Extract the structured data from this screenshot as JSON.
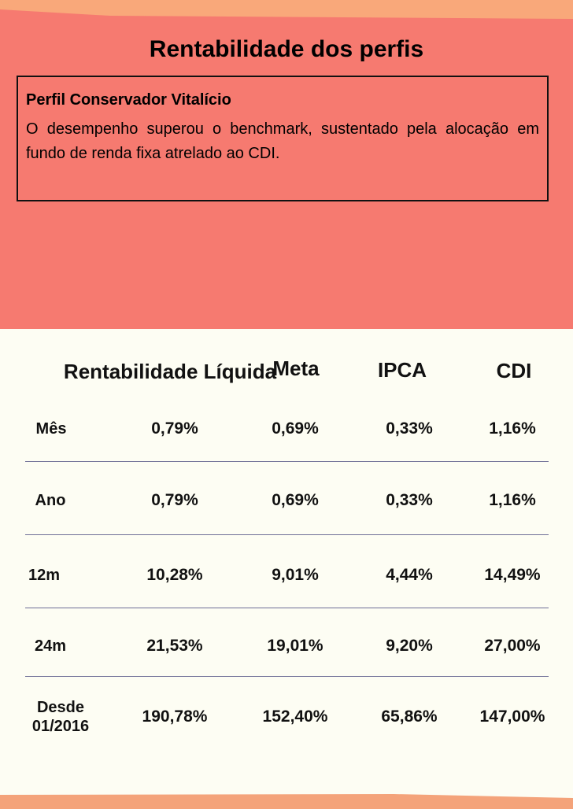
{
  "title": "Rentabilidade dos perfis",
  "profile": {
    "name": "Perfil Conservador Vitalício",
    "description": "O desempenho superou o benchmark, sustentado pela alocação em fundo de renda fixa atrelado ao CDI."
  },
  "table": {
    "headers": [
      "Rentabilidade Líquida",
      "Meta",
      "IPCA",
      "CDI"
    ],
    "rows": [
      {
        "label": "Mês",
        "values": [
          "0,79%",
          "0,69%",
          "0,33%",
          "1,16%"
        ]
      },
      {
        "label": "Ano",
        "values": [
          "0,79%",
          "0,69%",
          "0,33%",
          "1,16%"
        ]
      },
      {
        "label": "12m",
        "values": [
          "10,28%",
          "9,01%",
          "4,44%",
          "14,49%"
        ]
      },
      {
        "label": "24m",
        "values": [
          "21,53%",
          "19,01%",
          "9,20%",
          "27,00%"
        ]
      },
      {
        "label": "Desde 01/2016",
        "values": [
          "190,78%",
          "152,40%",
          "65,86%",
          "147,00%"
        ]
      }
    ]
  }
}
